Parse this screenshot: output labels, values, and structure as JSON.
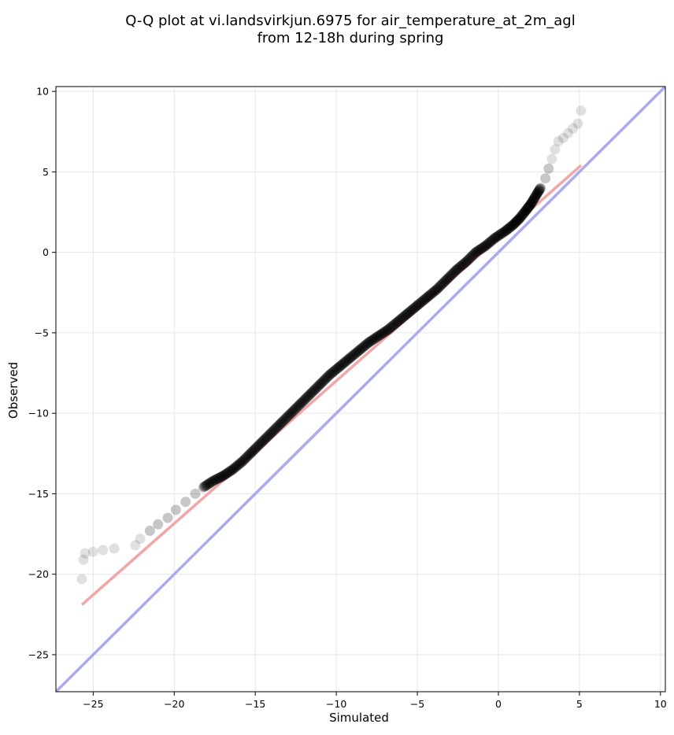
{
  "chart_data": {
    "type": "scatter",
    "title_line1": "Q-Q plot at vi.landsvirkjun.6975 for air_temperature_at_2m_agl",
    "title_line2": "from 12-18h during spring",
    "xlabel": "Simulated",
    "ylabel": "Observed",
    "xlim": [
      -27.3,
      10.3
    ],
    "ylim": [
      -27.3,
      10.3
    ],
    "xticks": [
      -25,
      -20,
      -15,
      -10,
      -5,
      0,
      5,
      10
    ],
    "yticks": [
      -25,
      -20,
      -15,
      -10,
      -5,
      0,
      5,
      10
    ],
    "xtick_labels": [
      "−25",
      "−20",
      "−15",
      "−10",
      "−5",
      "0",
      "5",
      "10"
    ],
    "ytick_labels": [
      "−25",
      "−20",
      "−15",
      "−10",
      "−5",
      "0",
      "5",
      "10"
    ],
    "grid": true,
    "colors": {
      "points": "#000000",
      "fit_line": "#f4a6a6",
      "identity_line": "#aaaaf2",
      "grid": "#e6e6e6",
      "tail_points": "#bdbdbd"
    },
    "series": [
      {
        "kind": "scatter",
        "x": [
          -25.7,
          -25.6,
          -25.5,
          -25.0,
          -24.4,
          -23.7,
          -22.4,
          -22.1,
          -21.5,
          -21.0,
          -20.4,
          -19.9,
          -19.3,
          -18.7,
          -18.2,
          -17.6,
          -17.0,
          -16.4,
          -15.8,
          -15.2,
          -14.6,
          -14.0,
          -13.4,
          -12.8,
          -12.2,
          -11.6,
          -11.0,
          -10.4,
          -9.8,
          -9.2,
          -8.6,
          -8.0,
          -7.4,
          -6.8,
          -6.2,
          -5.6,
          -5.0,
          -4.4,
          -3.8,
          -3.2,
          -2.6,
          -2.0,
          -1.4,
          -0.8,
          -0.2,
          0.4,
          0.9,
          1.3,
          1.7,
          2.0,
          2.3,
          2.6,
          2.9,
          3.1,
          3.3,
          3.5,
          3.7,
          4.0,
          4.3,
          4.6,
          4.9,
          5.1
        ],
        "y": [
          -20.3,
          -19.1,
          -18.7,
          -18.6,
          -18.5,
          -18.4,
          -18.2,
          -17.8,
          -17.3,
          -16.9,
          -16.5,
          -16.0,
          -15.5,
          -15.0,
          -14.6,
          -14.2,
          -13.9,
          -13.5,
          -13.0,
          -12.4,
          -11.8,
          -11.2,
          -10.6,
          -10.0,
          -9.4,
          -8.8,
          -8.2,
          -7.6,
          -7.1,
          -6.6,
          -6.1,
          -5.6,
          -5.2,
          -4.8,
          -4.3,
          -3.8,
          -3.3,
          -2.8,
          -2.3,
          -1.7,
          -1.1,
          -0.6,
          0.0,
          0.4,
          0.9,
          1.3,
          1.7,
          2.1,
          2.6,
          3.0,
          3.5,
          4.0,
          4.6,
          5.2,
          5.8,
          6.4,
          6.9,
          7.1,
          7.4,
          7.7,
          8.0,
          8.8
        ]
      },
      {
        "kind": "line",
        "role": "fit",
        "x": [
          -25.7,
          5.1
        ],
        "y": [
          -21.9,
          5.4
        ]
      },
      {
        "kind": "line",
        "role": "identity",
        "x": [
          -27.3,
          10.3
        ],
        "y": [
          -27.3,
          10.3
        ]
      }
    ]
  }
}
